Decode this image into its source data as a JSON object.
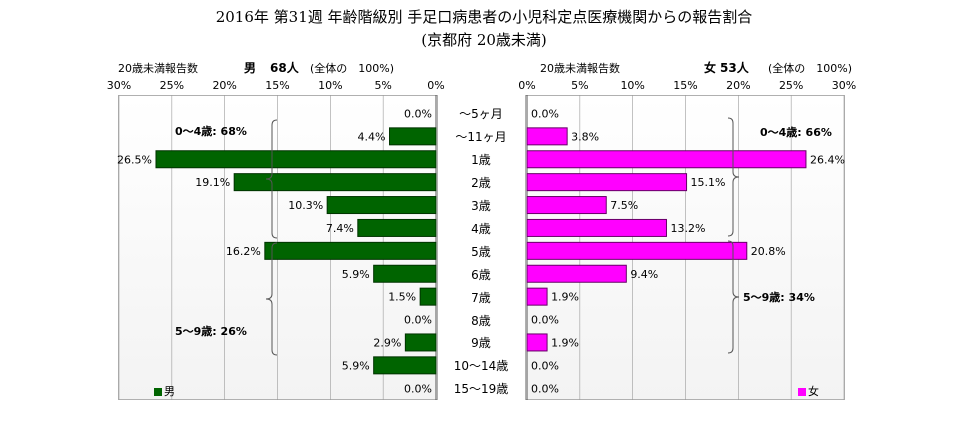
{
  "title_line1": "2016年 第31週 年齢階級別 手足口病患者の小児科定点医療機関からの報告割合",
  "title_line2": "(京都府 20歳未満)",
  "colors": {
    "male": "#006400",
    "female": "#ff00ff",
    "male_stroke": "#003300",
    "female_stroke": "#660066"
  },
  "left_panel": {
    "header_label": "20歳未満報告数",
    "header_gender": "男",
    "header_count": "68人",
    "header_total": "(全体の　100%)",
    "legend": "男",
    "bracket_a": "0～4歳: 68%",
    "bracket_b": "5～9歳: 26%"
  },
  "right_panel": {
    "header_label": "20歳未満報告数",
    "header_gender": "女",
    "header_count": "53人",
    "header_total": "(全体の　100%)",
    "legend": "女",
    "bracket_a": "0～4歳: 66%",
    "bracket_b": "5～9歳: 34%"
  },
  "chart_data": {
    "type": "bar",
    "orientation": "horizontal-population-pyramid",
    "categories": [
      "～5ヶ月",
      "～11ヶ月",
      "1歳",
      "2歳",
      "3歳",
      "4歳",
      "5歳",
      "6歳",
      "7歳",
      "8歳",
      "9歳",
      "10～14歳",
      "15～19歳"
    ],
    "series": [
      {
        "name": "男",
        "values": [
          0.0,
          4.4,
          26.5,
          19.1,
          10.3,
          7.4,
          16.2,
          5.9,
          1.5,
          0.0,
          2.9,
          5.9,
          0.0
        ],
        "labels": [
          "0.0%",
          "4.4%",
          "26.5%",
          "19.1%",
          "10.3%",
          "7.4%",
          "16.2%",
          "5.9%",
          "1.5%",
          "0.0%",
          "2.9%",
          "5.9%",
          "0.0%"
        ]
      },
      {
        "name": "女",
        "values": [
          0.0,
          3.8,
          26.4,
          15.1,
          7.5,
          13.2,
          20.8,
          9.4,
          1.9,
          0.0,
          1.9,
          0.0,
          0.0
        ],
        "labels": [
          "0.0%",
          "3.8%",
          "26.4%",
          "15.1%",
          "7.5%",
          "13.2%",
          "20.8%",
          "9.4%",
          "1.9%",
          "0.0%",
          "1.9%",
          "0.0%",
          "0.0%"
        ]
      }
    ],
    "xlim": [
      0,
      30
    ],
    "left_ticks": [
      "30%",
      "25%",
      "20%",
      "15%",
      "10%",
      "5%",
      "0%"
    ],
    "right_ticks": [
      "0%",
      "5%",
      "10%",
      "15%",
      "20%",
      "25%",
      "30%"
    ],
    "grid": true
  }
}
